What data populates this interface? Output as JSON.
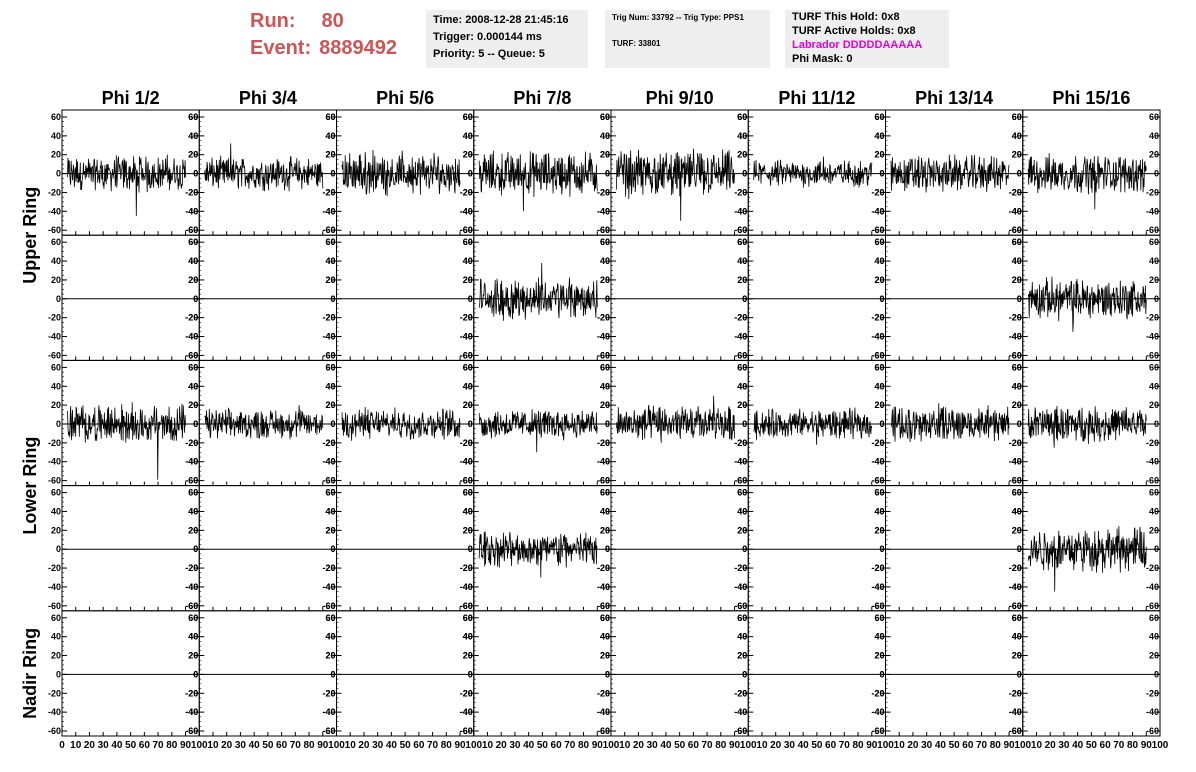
{
  "header": {
    "run_label": "Run:",
    "run_value": "80",
    "event_label": "Event:",
    "event_value": "8889492",
    "time": "Time: 2008-12-28 21:45:16",
    "trigger": "Trigger: 0.000144 ms",
    "priority": "Priority: 5 -- Queue: 5",
    "trig_num": "Trig Num: 33792 -- Trig Type: PPS1",
    "turf": "TURF: 33801",
    "turf_hold": "TURF This Hold: 0x8",
    "turf_active": "TURF Active Holds: 0x8",
    "labrador": "Labrador DDDDDAAAAA",
    "phi_mask": "Phi Mask: 0"
  },
  "colors": {
    "run_text": "#cc5555",
    "labrador_text": "#e000e0",
    "info_bg": "#eeeeee",
    "trace": "#000000"
  },
  "chart_data": {
    "type": "line",
    "columns": [
      "Phi 1/2",
      "Phi 3/4",
      "Phi 5/6",
      "Phi 7/8",
      "Phi 9/10",
      "Phi 11/12",
      "Phi 13/14",
      "Phi 15/16"
    ],
    "row_groups": [
      "Upper Ring",
      "Lower Ring",
      "Nadir Ring"
    ],
    "panel_rows": 5,
    "ylim": [
      -60,
      60
    ],
    "xlim": [
      0,
      100
    ],
    "y_ticks": [
      "60",
      "40",
      "20",
      "0",
      "-20",
      "-40",
      "-60"
    ],
    "x_ticks": [
      "0",
      "10",
      "20",
      "30",
      "40",
      "50",
      "60",
      "70",
      "80",
      "90",
      "100"
    ],
    "grid": false,
    "panels": [
      [
        {
          "amp": 12,
          "spike": -45
        },
        {
          "amp": 11,
          "spike": 32
        },
        {
          "amp": 14,
          "spike": 25
        },
        {
          "amp": 15,
          "spike": -40
        },
        {
          "amp": 16,
          "spike": -50
        },
        {
          "amp": 9,
          "spike": 18
        },
        {
          "amp": 12,
          "spike": -20
        },
        {
          "amp": 13,
          "spike": -38
        }
      ],
      [
        {
          "amp": 0,
          "spike": 0
        },
        {
          "amp": 0,
          "spike": 0
        },
        {
          "amp": 0,
          "spike": 0
        },
        {
          "amp": 14,
          "spike": 38
        },
        {
          "amp": 0,
          "spike": 0
        },
        {
          "amp": 0,
          "spike": 0
        },
        {
          "amp": 0,
          "spike": 0
        },
        {
          "amp": 14,
          "spike": -35
        }
      ],
      [
        {
          "amp": 13,
          "spike": -60
        },
        {
          "amp": 10,
          "spike": 20
        },
        {
          "amp": 10,
          "spike": 18
        },
        {
          "amp": 10,
          "spike": -30
        },
        {
          "amp": 12,
          "spike": 30
        },
        {
          "amp": 10,
          "spike": -22
        },
        {
          "amp": 12,
          "spike": 22
        },
        {
          "amp": 12,
          "spike": -25
        }
      ],
      [
        {
          "amp": 0,
          "spike": 0
        },
        {
          "amp": 0,
          "spike": 0
        },
        {
          "amp": 0,
          "spike": 0
        },
        {
          "amp": 12,
          "spike": -30
        },
        {
          "amp": 0,
          "spike": 0
        },
        {
          "amp": 0,
          "spike": 0
        },
        {
          "amp": 0,
          "spike": 0
        },
        {
          "amp": 15,
          "spike": -45
        }
      ],
      [
        {
          "amp": 0,
          "spike": 0
        },
        {
          "amp": 0,
          "spike": 0
        },
        {
          "amp": 0,
          "spike": 0
        },
        {
          "amp": 0,
          "spike": 0
        },
        {
          "amp": 0,
          "spike": 0
        },
        {
          "amp": 0,
          "spike": 0
        },
        {
          "amp": 0,
          "spike": 0
        },
        {
          "amp": 0,
          "spike": 0
        }
      ]
    ]
  }
}
